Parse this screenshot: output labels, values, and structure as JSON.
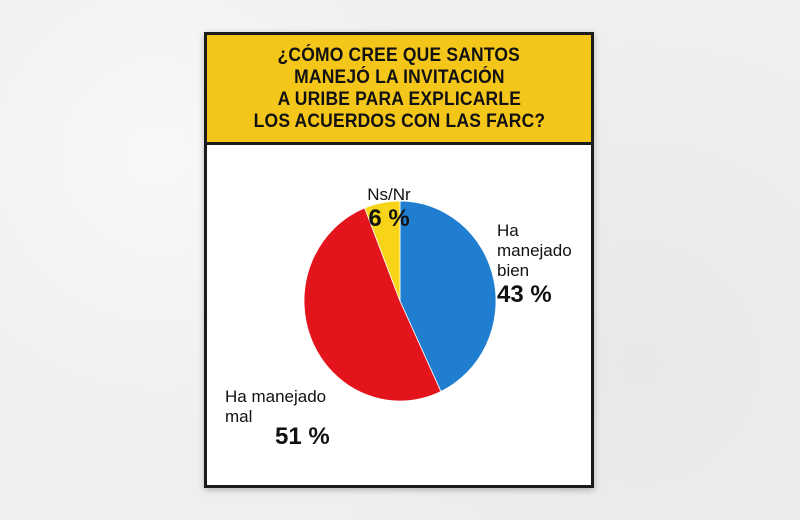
{
  "title_lines": [
    "¿CÓMO CREE QUE SANTOS",
    "MANEJÓ LA INVITACIÓN",
    "A URIBE PARA EXPLICARLE",
    "LOS ACUERDOS CON LAS FARC?"
  ],
  "chart_data": {
    "type": "pie",
    "title": "¿CÓMO CREE QUE SANTOS MANEJÓ LA INVITACIÓN A URIBE PARA EXPLICARLE LOS ACUERDOS CON LAS FARC?",
    "slices": [
      {
        "label_lines": [
          "Ha",
          "manejado",
          "bien"
        ],
        "value": 43,
        "value_label": "43 %",
        "color": "#1f7ecf"
      },
      {
        "label_lines": [
          "Ha manejado",
          "mal"
        ],
        "value": 51,
        "value_label": "51 %",
        "color": "#e3141b"
      },
      {
        "label_lines": [
          "Ns/Nr"
        ],
        "value": 6,
        "value_label": "6 %",
        "color": "#f7d417"
      }
    ]
  },
  "colors": {
    "header_bg": "#f5c61a",
    "frame": "#1b1b1b"
  }
}
